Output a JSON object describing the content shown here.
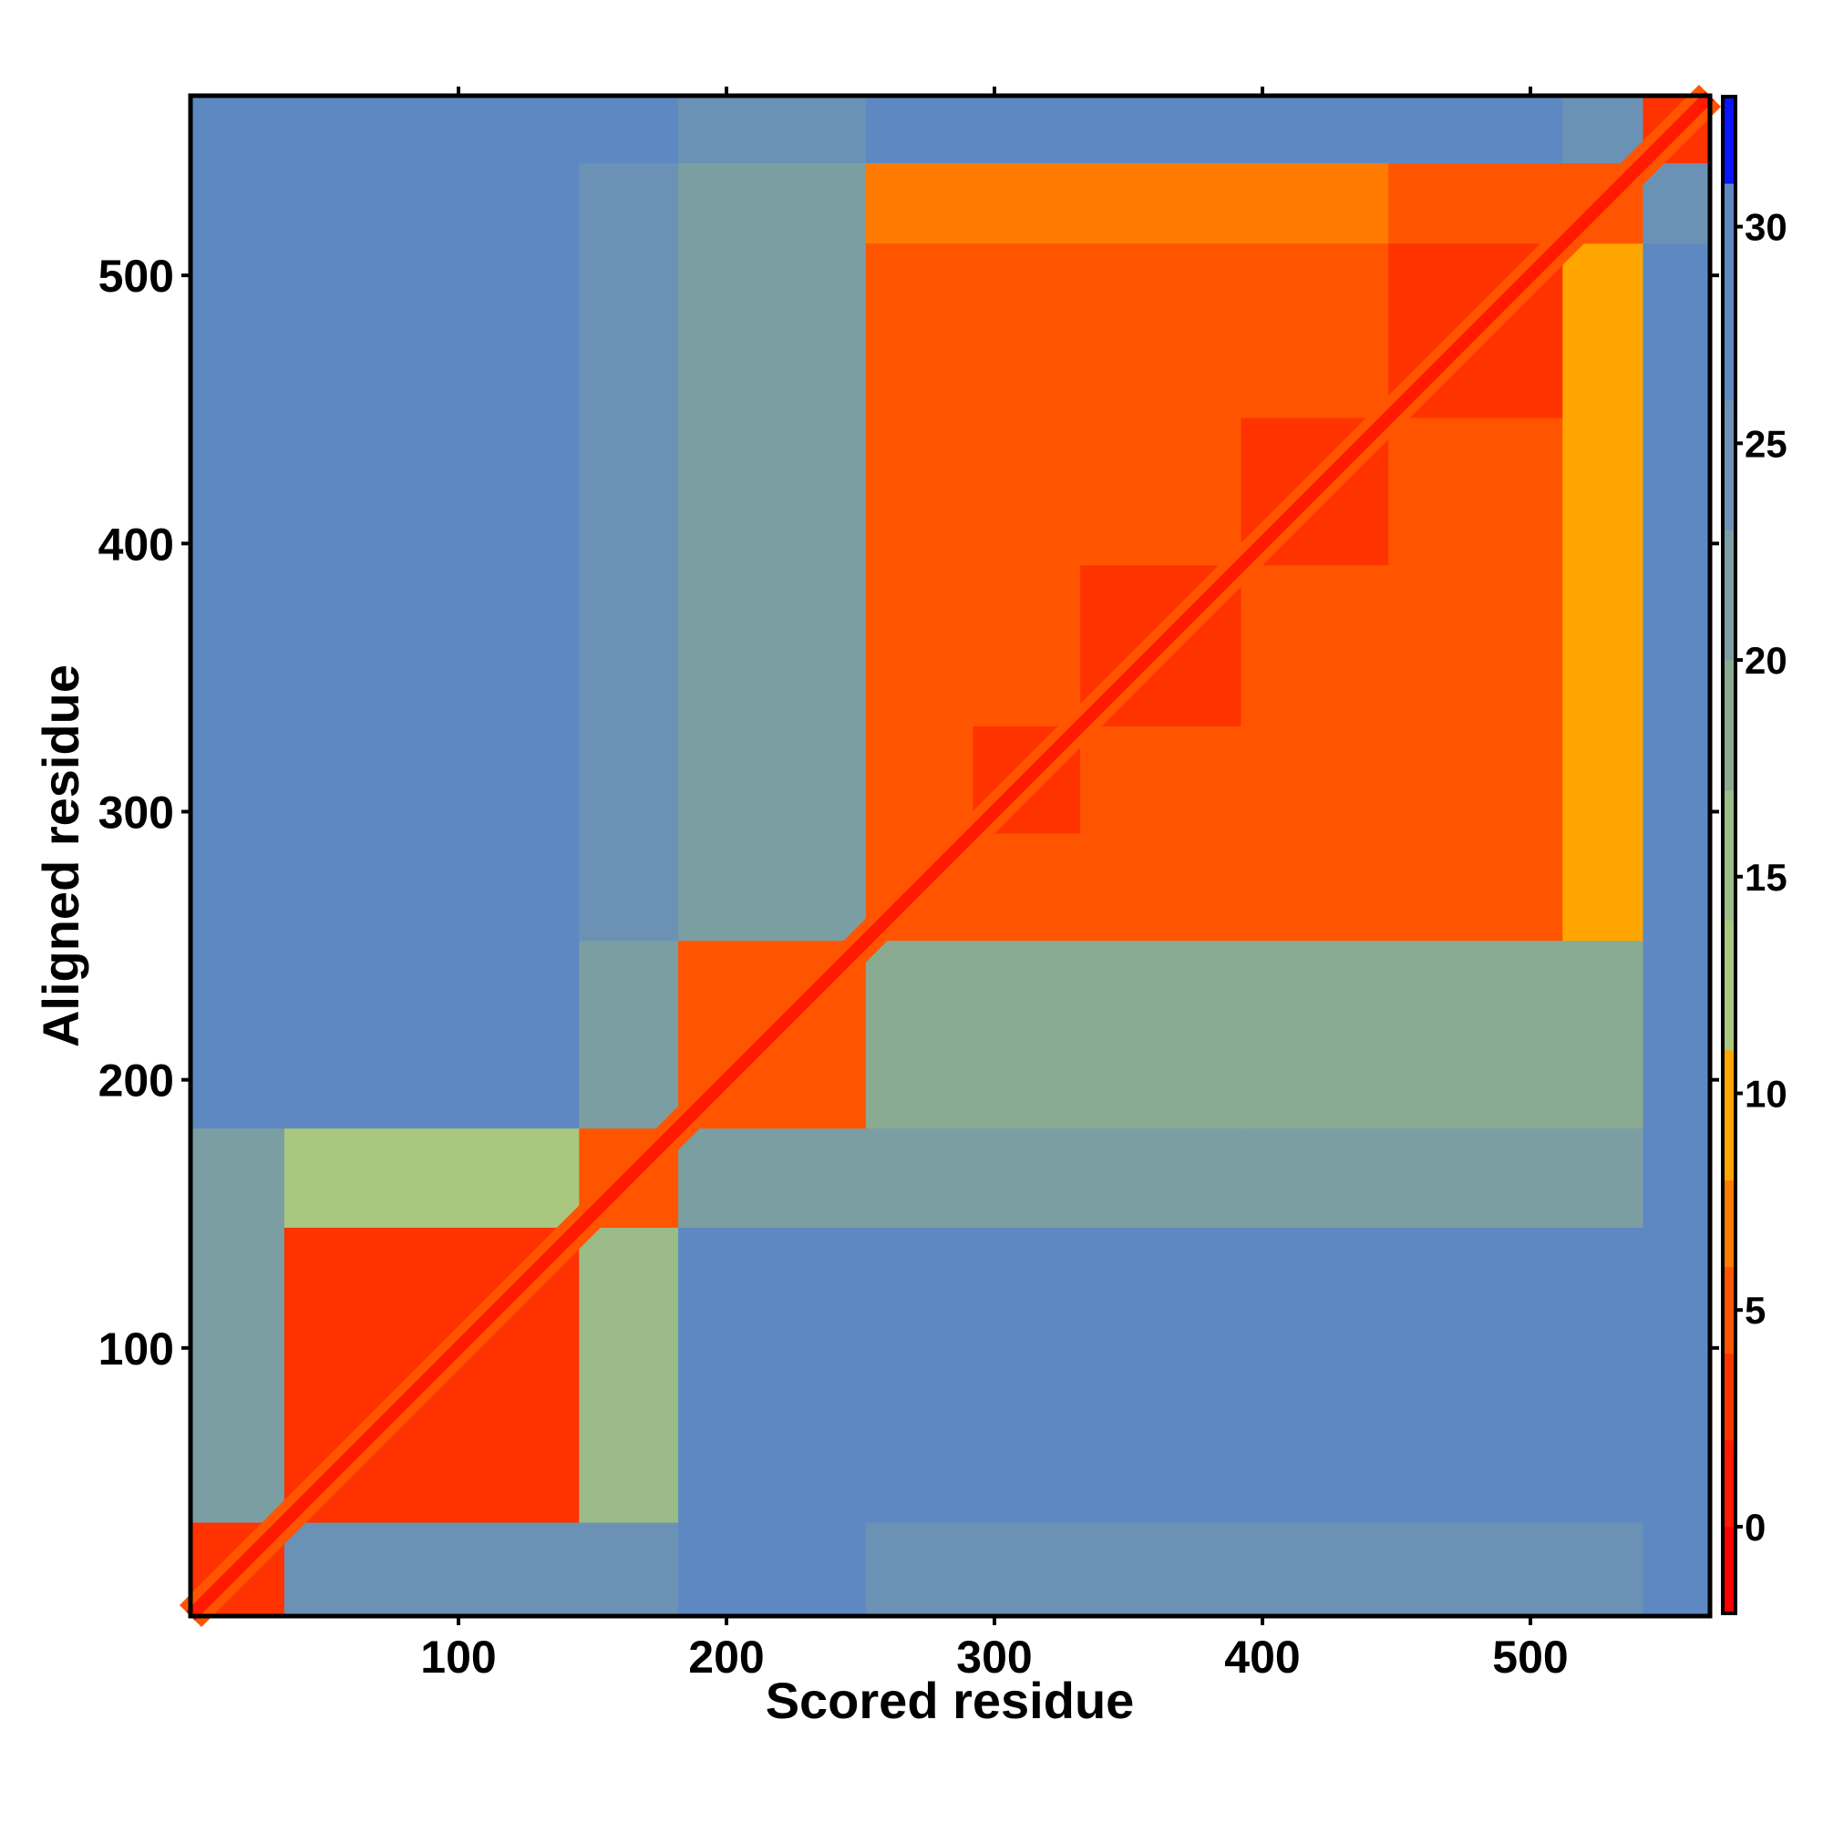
{
  "chart_data": {
    "type": "heatmap",
    "title": "",
    "xlabel": "Scored residue",
    "ylabel": "Aligned residue",
    "xlim": [
      0,
      567
    ],
    "ylim": [
      0,
      567
    ],
    "xticks": [
      100,
      200,
      300,
      400,
      500
    ],
    "yticks": [
      100,
      200,
      300,
      400,
      500
    ],
    "xtick_labels": [
      "100",
      "200",
      "300",
      "400",
      "500"
    ],
    "ytick_labels": [
      "100",
      "200",
      "300",
      "400",
      "500"
    ],
    "colorbar": {
      "range": [
        -2,
        33
      ],
      "ticks": [
        0,
        5,
        10,
        15,
        20,
        25,
        30
      ],
      "tick_labels": [
        "0",
        "5",
        "10",
        "15",
        "20",
        "25",
        "30"
      ],
      "steps": [
        {
          "from": -2,
          "to": 0,
          "color": "#ff0000"
        },
        {
          "from": 0,
          "to": 2,
          "color": "#ff1a00"
        },
        {
          "from": 2,
          "to": 4,
          "color": "#ff3300"
        },
        {
          "from": 4,
          "to": 6,
          "color": "#ff5500"
        },
        {
          "from": 6,
          "to": 8,
          "color": "#ff7a00"
        },
        {
          "from": 8,
          "to": 11,
          "color": "#ffa500"
        },
        {
          "from": 11,
          "to": 14,
          "color": "#a9c77e"
        },
        {
          "from": 14,
          "to": 17,
          "color": "#9bbb88"
        },
        {
          "from": 17,
          "to": 20,
          "color": "#8aaa92"
        },
        {
          "from": 20,
          "to": 23,
          "color": "#7b9ea3"
        },
        {
          "from": 23,
          "to": 26,
          "color": "#6b92b4"
        },
        {
          "from": 26,
          "to": 31,
          "color": "#5e88c2"
        },
        {
          "from": 31,
          "to": 33,
          "color": "#0a14ff"
        }
      ]
    },
    "segments": [
      [
        0,
        35
      ],
      [
        35,
        145
      ],
      [
        145,
        182
      ],
      [
        182,
        252
      ],
      [
        252,
        292
      ],
      [
        292,
        332
      ],
      [
        332,
        392
      ],
      [
        392,
        447
      ],
      [
        447,
        512
      ],
      [
        512,
        542
      ],
      [
        542,
        567
      ]
    ],
    "matrix_rows_aligned_cols_scored": [
      [
        3,
        24,
        25,
        27,
        25,
        25,
        25,
        25,
        25,
        25,
        27
      ],
      [
        22,
        3,
        14,
        26,
        26,
        26,
        26,
        26,
        26,
        26,
        27
      ],
      [
        22,
        12,
        4,
        20,
        22,
        22,
        22,
        22,
        22,
        22,
        26
      ],
      [
        27,
        26,
        20,
        5,
        17,
        17,
        17,
        18,
        18,
        19,
        27
      ],
      [
        27,
        27,
        24,
        20,
        4,
        4,
        4,
        5,
        5,
        9,
        26
      ],
      [
        27,
        27,
        24,
        20,
        4,
        3,
        4,
        5,
        5,
        9,
        26
      ],
      [
        27,
        27,
        24,
        20,
        5,
        4,
        3,
        4,
        5,
        9,
        26
      ],
      [
        27,
        27,
        24,
        20,
        5,
        5,
        4,
        3,
        4,
        9,
        26
      ],
      [
        27,
        27,
        24,
        20,
        5,
        5,
        5,
        4,
        3,
        9,
        26
      ],
      [
        26,
        26,
        24,
        20,
        6,
        6,
        6,
        6,
        5,
        4,
        24
      ],
      [
        27,
        27,
        26,
        25,
        26,
        26,
        26,
        26,
        26,
        25,
        3
      ]
    ],
    "diagonal_value": 0
  }
}
